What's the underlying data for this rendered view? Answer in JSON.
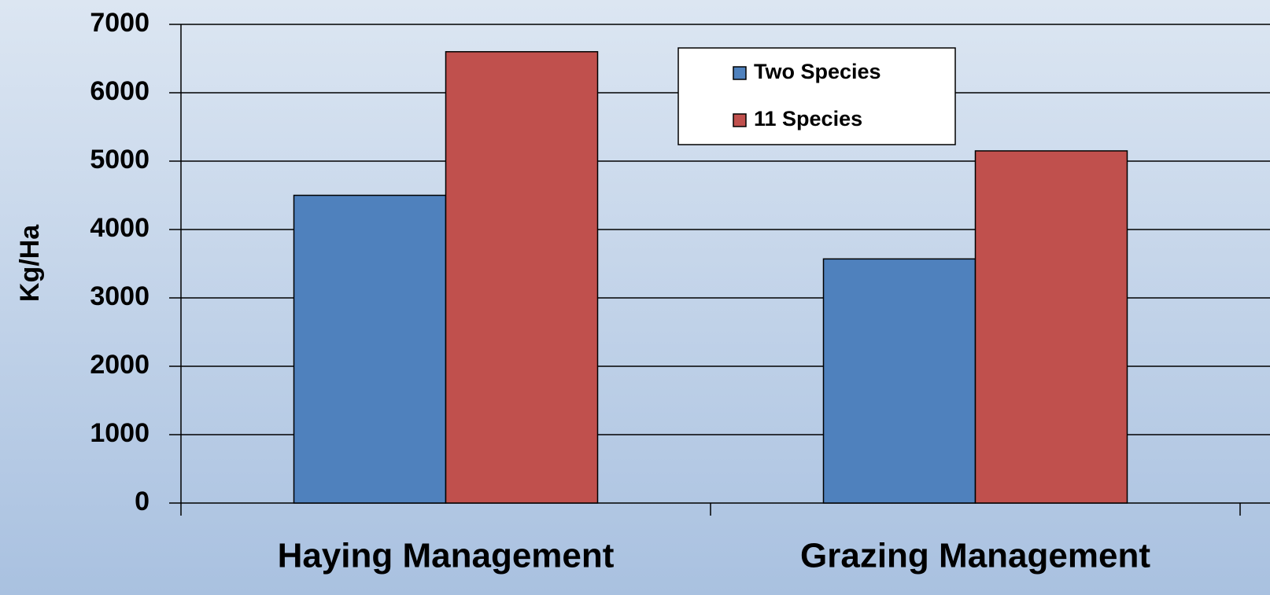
{
  "chart_data": {
    "type": "bar",
    "categories": [
      "Haying Management",
      "Grazing Management"
    ],
    "series": [
      {
        "name": "Two Species",
        "color": "#4f81bd",
        "values": [
          4500,
          3570
        ]
      },
      {
        "name": "11 Species",
        "color": "#c0504d",
        "values": [
          6600,
          5150
        ]
      }
    ],
    "ylabel": "Kg/Ha",
    "ylim": [
      0,
      7000
    ],
    "yticks": [
      0,
      1000,
      2000,
      3000,
      4000,
      5000,
      6000,
      7000
    ],
    "grid": true,
    "legend": "top-right"
  }
}
